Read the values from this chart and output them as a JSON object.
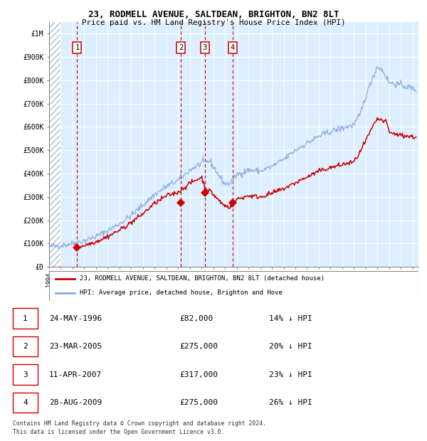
{
  "title": "23, RODMELL AVENUE, SALTDEAN, BRIGHTON, BN2 8LT",
  "subtitle": "Price paid vs. HM Land Registry's House Price Index (HPI)",
  "legend_line1": "23, RODMELL AVENUE, SALTDEAN, BRIGHTON, BN2 8LT (detached house)",
  "legend_line2": "HPI: Average price, detached house, Brighton and Hove",
  "footnote1": "Contains HM Land Registry data © Crown copyright and database right 2024.",
  "footnote2": "This data is licensed under the Open Government Licence v3.0.",
  "sale_line_color": "#cc0000",
  "hpi_line_color": "#88aadd",
  "plot_bg_color": "#ddeeff",
  "ylim": [
    0,
    1050000
  ],
  "yticks": [
    0,
    100000,
    200000,
    300000,
    400000,
    500000,
    600000,
    700000,
    800000,
    900000,
    1000000
  ],
  "ytick_labels": [
    "£0",
    "£100K",
    "£200K",
    "£300K",
    "£400K",
    "£500K",
    "£600K",
    "£700K",
    "£800K",
    "£900K",
    "£1M"
  ],
  "sale_dates": [
    1996.39,
    2005.23,
    2007.28,
    2009.66
  ],
  "sale_prices": [
    82000,
    275000,
    317000,
    275000
  ],
  "sale_labels": [
    "1",
    "2",
    "3",
    "4"
  ],
  "table_rows": [
    [
      "1",
      "24-MAY-1996",
      "£82,000",
      "14% ↓ HPI"
    ],
    [
      "2",
      "23-MAR-2005",
      "£275,000",
      "20% ↓ HPI"
    ],
    [
      "3",
      "11-APR-2007",
      "£317,000",
      "23% ↓ HPI"
    ],
    [
      "4",
      "28-AUG-2009",
      "£275,000",
      "26% ↓ HPI"
    ]
  ],
  "xmin": 1994.0,
  "xmax": 2025.5
}
